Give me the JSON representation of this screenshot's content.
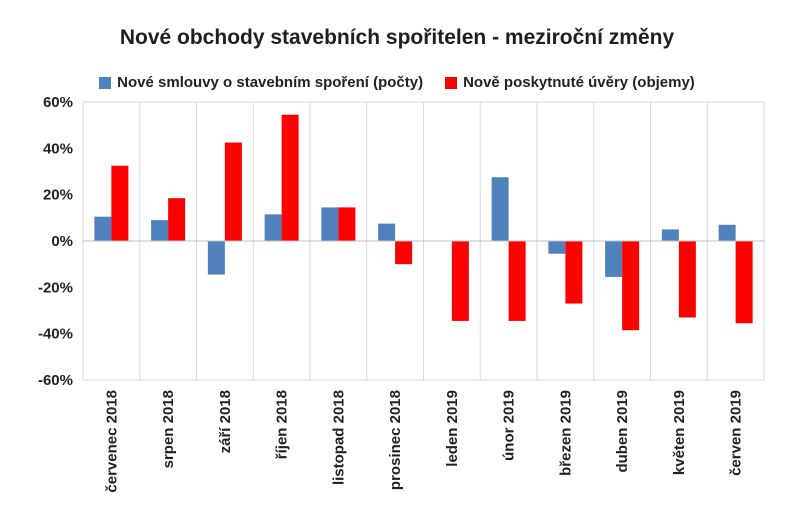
{
  "chart_data": {
    "type": "bar",
    "title": "Nové obchody stavebních spořitelen - meziroční změny",
    "categories": [
      "červenec 2018",
      "srpen 2018",
      "září 2018",
      "říjen 2018",
      "listopad 2018",
      "prosinec 2018",
      "leden 2019",
      "únor 2019",
      "březen 2019",
      "duben 2019",
      "květen 2019",
      "červen 2019"
    ],
    "series": [
      {
        "name": "Nové smlouvy o stavebním spoření (počty)",
        "color": "#4f81bd",
        "values": [
          10.5,
          9,
          -14.5,
          11.5,
          14.5,
          7.5,
          0,
          27.5,
          -5.5,
          -15.5,
          5,
          7
        ]
      },
      {
        "name": "Nově poskytnuté úvěry (objemy)",
        "color": "#ff0000",
        "values": [
          32.5,
          18.5,
          42.5,
          54.5,
          14.5,
          -10,
          -34.5,
          -34.5,
          -27,
          -38.5,
          -33,
          -35.5
        ]
      }
    ],
    "ylim": [
      -60,
      60
    ],
    "yticks": [
      "-60%",
      "-40%",
      "-20%",
      "0%",
      "20%",
      "40%",
      "60%"
    ],
    "legend_position": "top",
    "grid": "vertical"
  }
}
